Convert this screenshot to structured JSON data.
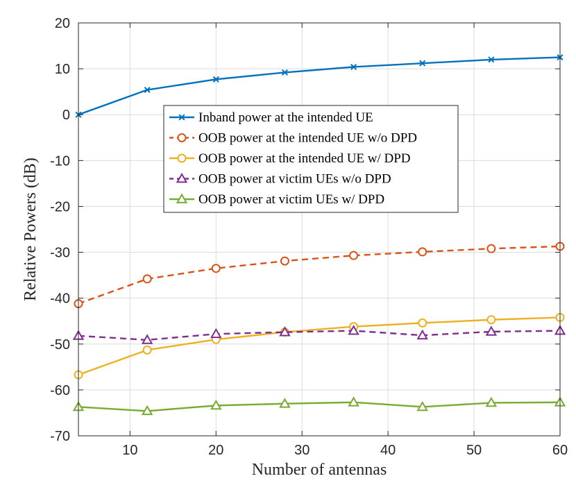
{
  "chart_data": {
    "type": "line",
    "title": "",
    "xlabel": "Number of antennas",
    "ylabel": "Relative Powers (dB)",
    "xlim": [
      4,
      60
    ],
    "ylim": [
      -70,
      20
    ],
    "xticks": [
      10,
      20,
      30,
      40,
      50,
      60
    ],
    "yticks": [
      -70,
      -60,
      -50,
      -40,
      -30,
      -20,
      -10,
      0,
      10,
      20
    ],
    "grid": true,
    "legend_position": "center",
    "x": [
      4,
      12,
      20,
      28,
      36,
      44,
      52,
      60
    ],
    "series": [
      {
        "name": "Inband power at the intended UE",
        "color": "#0072BD",
        "line_style": "solid",
        "marker": "x-icon",
        "values": [
          0,
          5.4,
          7.7,
          9.2,
          10.4,
          11.2,
          12.0,
          12.5
        ]
      },
      {
        "name": "OOB power at the intended UE w/o DPD",
        "color": "#D95319",
        "line_style": "dashed",
        "marker": "circle-icon",
        "values": [
          -41.2,
          -35.8,
          -33.5,
          -31.9,
          -30.7,
          -29.9,
          -29.2,
          -28.7
        ]
      },
      {
        "name": "OOB power at the intended UE w/ DPD",
        "color": "#EDB120",
        "line_style": "solid",
        "marker": "circle-icon",
        "values": [
          -56.7,
          -51.3,
          -49.0,
          -47.4,
          -46.2,
          -45.4,
          -44.7,
          -44.2
        ]
      },
      {
        "name": "OOB power at victim UEs w/o DPD",
        "color": "#7E2F8E",
        "line_style": "dashed",
        "marker": "triangle-icon",
        "values": [
          -48.2,
          -49.1,
          -47.8,
          -47.4,
          -47.1,
          -48.1,
          -47.3,
          -47.1
        ]
      },
      {
        "name": "OOB power at victim UEs w/ DPD",
        "color": "#77AC30",
        "line_style": "solid",
        "marker": "triangle-icon",
        "values": [
          -63.7,
          -64.6,
          -63.4,
          -63.0,
          -62.7,
          -63.7,
          -62.8,
          -62.7
        ]
      }
    ]
  }
}
